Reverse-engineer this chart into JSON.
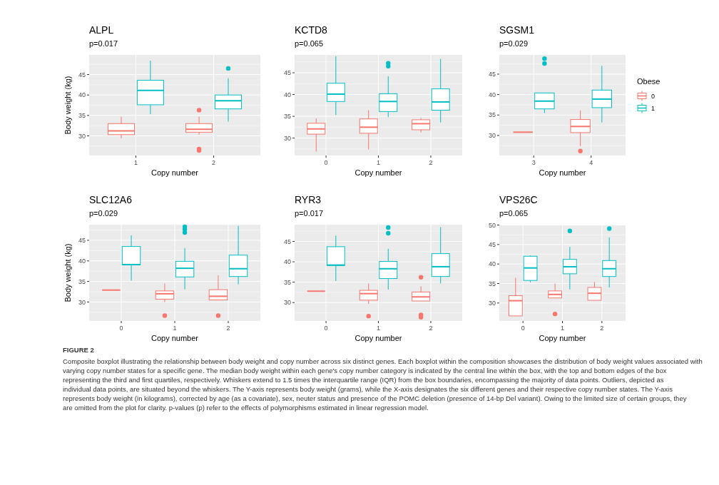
{
  "chart_data": [
    {
      "type": "box",
      "title": "ALPL",
      "subtitle": "p=0.017",
      "xlabel": "Copy number",
      "ylabel": "Body weight (kg)",
      "categories": [
        "1",
        "2"
      ],
      "ylim": [
        25.2,
        49.8
      ],
      "yticks": [
        30,
        35,
        40,
        45
      ],
      "grid": true,
      "series": [
        {
          "color": "#f8766d",
          "boxes": [
            {
              "low": 29.4,
              "q1": 30.3,
              "median": 31.2,
              "q3": 33.0,
              "high": 34.7
            },
            {
              "low": 30.3,
              "q1": 30.9,
              "median": 31.6,
              "q3": 33.0,
              "high": 34.7,
              "outliers": [
                36.3,
                26.8,
                26.4
              ]
            }
          ]
        },
        {
          "color": "#00bfc4",
          "boxes": [
            {
              "low": 35.3,
              "q1": 37.6,
              "median": 41.1,
              "q3": 43.6,
              "high": 48.4
            },
            {
              "low": 33.5,
              "q1": 36.6,
              "median": 38.6,
              "q3": 40.0,
              "high": 44.1,
              "outliers": [
                46.5
              ]
            }
          ]
        }
      ]
    },
    {
      "type": "box",
      "title": "KCTD8",
      "subtitle": "p=0.065",
      "xlabel": "Copy number",
      "categories": [
        "0",
        "1",
        "2"
      ],
      "ylim": [
        26.0,
        49.1
      ],
      "yticks": [
        30,
        35,
        40,
        45
      ],
      "grid": true,
      "series": [
        {
          "color": "#f8766d",
          "boxes": [
            {
              "low": 26.9,
              "q1": 30.9,
              "median": 32.1,
              "q3": 33.4,
              "high": 34.5
            },
            {
              "low": 27.4,
              "q1": 31.1,
              "median": 32.5,
              "q3": 34.4,
              "high": 36.4
            },
            {
              "low": 31.3,
              "q1": 31.9,
              "median": 33.3,
              "q3": 34.2,
              "high": 34.6
            }
          ]
        },
        {
          "color": "#00bfc4",
          "boxes": [
            {
              "low": 35.3,
              "q1": 38.4,
              "median": 40.1,
              "q3": 42.6,
              "high": 48.8
            },
            {
              "low": 34.8,
              "q1": 36.1,
              "median": 38.4,
              "q3": 40.2,
              "high": 44.2,
              "outliers": [
                47.2,
                46.5
              ]
            },
            {
              "low": 33.6,
              "q1": 36.4,
              "median": 38.3,
              "q3": 41.3,
              "high": 48.2
            }
          ]
        }
      ]
    },
    {
      "type": "box",
      "title": "SGSM1",
      "subtitle": "p=0.029",
      "xlabel": "Copy number",
      "categories": [
        "3",
        "4"
      ],
      "ylim": [
        25.1,
        49.7
      ],
      "yticks": [
        30,
        35,
        40,
        45
      ],
      "grid": true,
      "legend": "right",
      "legend_title": "Obese",
      "series": [
        {
          "name": "0",
          "color": "#f8766d",
          "boxes": [
            {
              "low": 30.8,
              "q1": 30.8,
              "median": 30.8,
              "q3": 30.8,
              "high": 30.8
            },
            {
              "low": 27.4,
              "q1": 30.7,
              "median": 32.2,
              "q3": 33.9,
              "high": 36.1,
              "outliers": [
                26.2
              ]
            }
          ]
        },
        {
          "name": "1",
          "color": "#00bfc4",
          "boxes": [
            {
              "low": 35.5,
              "q1": 36.5,
              "median": 38.4,
              "q3": 40.4,
              "high": 40.4,
              "outliers": [
                48.8,
                47.6
              ]
            },
            {
              "low": 33.2,
              "q1": 36.8,
              "median": 38.9,
              "q3": 41.1,
              "high": 47.0
            }
          ]
        }
      ]
    },
    {
      "type": "box",
      "title": "SLC12A6",
      "subtitle": "p=0.029",
      "xlabel": "Copy number",
      "ylabel": "Body weight (kg)",
      "categories": [
        "0",
        "1",
        "2"
      ],
      "ylim": [
        25.4,
        48.8
      ],
      "yticks": [
        30,
        35,
        40,
        45
      ],
      "grid": true,
      "series": [
        {
          "color": "#f8766d",
          "boxes": [
            {
              "low": 32.9,
              "q1": 32.9,
              "median": 32.9,
              "q3": 32.9,
              "high": 32.9
            },
            {
              "low": 30.0,
              "q1": 30.7,
              "median": 32.0,
              "q3": 32.7,
              "high": 34.5,
              "outliers": [
                26.7
              ]
            },
            {
              "low": 30.5,
              "q1": 30.5,
              "median": 31.4,
              "q3": 33.0,
              "high": 36.5,
              "outliers": [
                26.7
              ]
            }
          ]
        },
        {
          "color": "#00bfc4",
          "boxes": [
            {
              "low": 35.2,
              "q1": 39.1,
              "median": 39.1,
              "q3": 43.5,
              "high": 46.2
            },
            {
              "low": 33.1,
              "q1": 36.1,
              "median": 38.2,
              "q3": 39.9,
              "high": 43.1,
              "outliers": [
                48.3,
                47.7,
                46.9
              ]
            },
            {
              "low": 34.3,
              "q1": 36.2,
              "median": 38.1,
              "q3": 41.4,
              "high": 48.5
            }
          ]
        }
      ]
    },
    {
      "type": "box",
      "title": "RYR3",
      "subtitle": "p=0.017",
      "xlabel": "Copy number",
      "categories": [
        "0",
        "1",
        "2"
      ],
      "ylim": [
        25.5,
        49.1
      ],
      "yticks": [
        30,
        35,
        40,
        45
      ],
      "grid": true,
      "series": [
        {
          "color": "#f8766d",
          "boxes": [
            {
              "low": 32.8,
              "q1": 32.8,
              "median": 32.8,
              "q3": 32.8,
              "high": 32.8
            },
            {
              "low": 29.7,
              "q1": 30.6,
              "median": 32.2,
              "q3": 33.0,
              "high": 34.7,
              "outliers": [
                26.7
              ]
            },
            {
              "low": 30.4,
              "q1": 30.4,
              "median": 31.4,
              "q3": 32.6,
              "high": 34.0,
              "outliers": [
                36.2,
                27.0,
                26.4
              ]
            }
          ]
        },
        {
          "color": "#00bfc4",
          "boxes": [
            {
              "low": 35.3,
              "q1": 39.1,
              "median": 39.2,
              "q3": 43.7,
              "high": 46.4
            },
            {
              "low": 33.2,
              "q1": 35.9,
              "median": 38.3,
              "q3": 40.1,
              "high": 43.2,
              "outliers": [
                48.4,
                47.0
              ]
            },
            {
              "low": 34.7,
              "q1": 36.4,
              "median": 38.8,
              "q3": 42.0,
              "high": 48.5
            }
          ]
        }
      ]
    },
    {
      "type": "box",
      "title": "VPS26C",
      "subtitle": "p=0.065",
      "xlabel": "Copy number",
      "categories": [
        "0",
        "1",
        "2"
      ],
      "ylim": [
        25.4,
        50.1
      ],
      "yticks": [
        30,
        35,
        40,
        45,
        50
      ],
      "grid": true,
      "series": [
        {
          "color": "#f8766d",
          "boxes": [
            {
              "low": 26.7,
              "q1": 26.7,
              "median": 30.6,
              "q3": 31.9,
              "high": 36.5
            },
            {
              "low": 31.3,
              "q1": 31.3,
              "median": 32.2,
              "q3": 33.1,
              "high": 35.0,
              "outliers": [
                27.2
              ]
            },
            {
              "low": 30.7,
              "q1": 30.7,
              "median": 32.5,
              "q3": 34.0,
              "high": 35.4
            }
          ]
        },
        {
          "color": "#00bfc4",
          "boxes": [
            {
              "low": 35.3,
              "q1": 35.8,
              "median": 39.0,
              "q3": 42.0,
              "high": 42.2
            },
            {
              "low": 33.5,
              "q1": 37.5,
              "median": 39.3,
              "q3": 41.2,
              "high": 44.4,
              "outliers": [
                48.5
              ]
            },
            {
              "low": 34.0,
              "q1": 36.8,
              "median": 38.8,
              "q3": 40.9,
              "high": 46.8,
              "outliers": [
                49.1
              ]
            }
          ]
        }
      ],
      "annotations": [
        "FIGURE 2",
        "Composite boxplot illustrating the relationship between body weight and copy number across six distinct genes. Each boxplot within the composition showcases the distribution of body weight values associated with varying copy number states for a specific gene. The median body weight within each gene's copy number category is indicated by the central line within the box, with the top and bottom edges of the box representing the third and first quartiles, respectively. Whiskers extend to 1.5 times the interquartile range (IQR) from the box boundaries, encompassing the majority of data points. Outliers, depicted as individual data points, are situated beyond the whiskers. The Y-axis represents body weight (grams), while the X-axis designates the six different genes and their respective copy number states. The Y-axis represents body weight (in kilograms), corrected by age (as a covariate), sex, neuter status and presence of the POMC deletion (presence of 14-bp Del variant). Owing to the limited size of certain groups, they are omitted from the plot for clarity. p-values (p) refer to the effects of polymorphisms estimated in linear regression model."
      ]
    }
  ]
}
